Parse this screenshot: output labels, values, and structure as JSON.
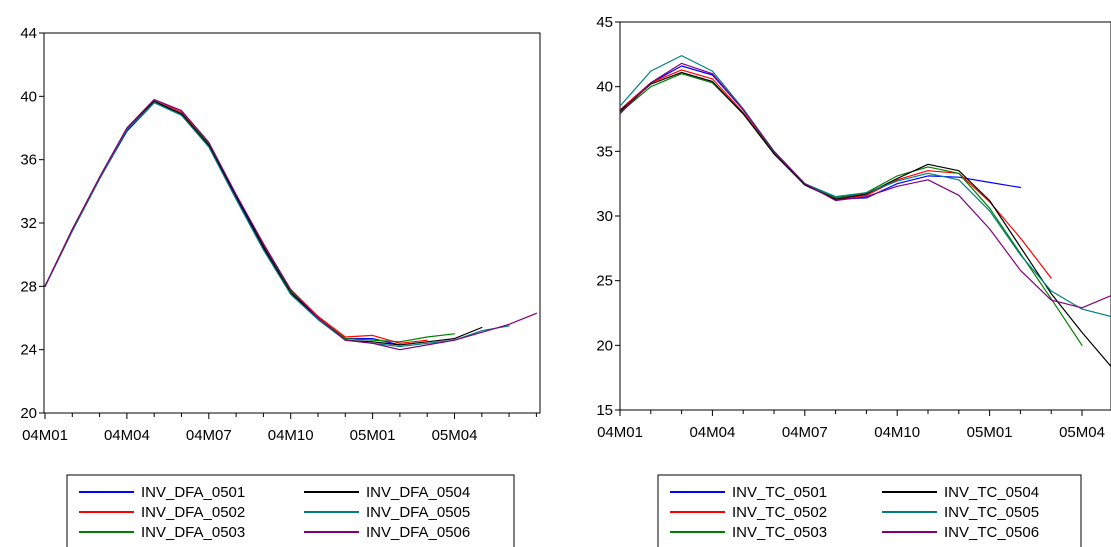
{
  "chart_data": [
    {
      "type": "line",
      "title": "",
      "xlabel": "",
      "ylabel": "",
      "ylim": [
        20,
        44
      ],
      "yticks": [
        20,
        24,
        28,
        32,
        36,
        40,
        44
      ],
      "x_period_labels": [
        "04M01",
        "04M02",
        "04M03",
        "04M04",
        "04M05",
        "04M06",
        "04M07",
        "04M08",
        "04M09",
        "04M10",
        "04M11",
        "04M12",
        "05M01",
        "05M02",
        "05M03",
        "05M04",
        "05M05",
        "05M06",
        "05M07"
      ],
      "xtick_labels": [
        "04M01",
        "04M04",
        "04M07",
        "04M10",
        "05M01",
        "05M04"
      ],
      "grid": false,
      "legend_position": "bottom",
      "series": [
        {
          "name": "INV_DFA_0501",
          "color": "#0000ff",
          "values": [
            28.0,
            31.5,
            34.8,
            37.8,
            39.6,
            38.9,
            36.9,
            33.6,
            30.4,
            27.6,
            26.0,
            24.7,
            24.7,
            24.3
          ]
        },
        {
          "name": "INV_DFA_0502",
          "color": "#ff0000",
          "values": [
            28.0,
            31.6,
            34.9,
            38.0,
            39.8,
            39.0,
            37.0,
            33.8,
            30.6,
            27.8,
            26.1,
            24.8,
            24.9,
            24.4,
            24.6
          ]
        },
        {
          "name": "INV_DFA_0503",
          "color": "#008000",
          "values": [
            28.0,
            31.5,
            34.8,
            37.9,
            39.7,
            38.9,
            37.0,
            33.7,
            30.5,
            27.7,
            26.0,
            24.7,
            24.6,
            24.5,
            24.8,
            25.0
          ]
        },
        {
          "name": "INV_DFA_0504",
          "color": "#000000",
          "values": [
            28.0,
            31.5,
            34.8,
            37.9,
            39.7,
            38.9,
            36.9,
            33.7,
            30.5,
            27.6,
            26.0,
            24.6,
            24.5,
            24.3,
            24.5,
            24.7,
            25.4
          ]
        },
        {
          "name": "INV_DFA_0505",
          "color": "#008080",
          "values": [
            28.0,
            31.5,
            34.8,
            37.9,
            39.6,
            38.8,
            36.8,
            33.5,
            30.3,
            27.5,
            25.9,
            24.6,
            24.4,
            24.2,
            24.4,
            24.6,
            25.2,
            25.5
          ]
        },
        {
          "name": "INV_DFA_0506",
          "color": "#800080",
          "values": [
            28.0,
            31.6,
            34.9,
            38.0,
            39.8,
            39.1,
            37.1,
            33.8,
            30.7,
            27.8,
            26.0,
            24.6,
            24.4,
            24.0,
            24.3,
            24.6,
            25.1,
            25.6,
            26.3
          ]
        }
      ]
    },
    {
      "type": "line",
      "title": "",
      "xlabel": "",
      "ylabel": "",
      "ylim": [
        15,
        45
      ],
      "yticks": [
        15,
        20,
        25,
        30,
        35,
        40,
        45
      ],
      "x_period_labels": [
        "04M01",
        "04M02",
        "04M03",
        "04M04",
        "04M05",
        "04M06",
        "04M07",
        "04M08",
        "04M09",
        "04M10",
        "04M11",
        "04M12",
        "05M01",
        "05M02",
        "05M03",
        "05M04",
        "05M05",
        "05M06",
        "05M07"
      ],
      "xtick_labels": [
        "04M01",
        "04M04",
        "04M07",
        "04M10",
        "05M01",
        "05M04"
      ],
      "grid": false,
      "legend_position": "bottom",
      "series": [
        {
          "name": "INV_TC_0501",
          "color": "#0000ff",
          "values": [
            38.2,
            40.3,
            41.6,
            40.9,
            38.2,
            35.0,
            32.4,
            31.3,
            31.4,
            32.5,
            33.1,
            33.0,
            32.6,
            32.2
          ]
        },
        {
          "name": "INV_TC_0502",
          "color": "#ff0000",
          "values": [
            38.2,
            40.3,
            41.3,
            40.6,
            38.0,
            34.9,
            32.4,
            31.3,
            31.6,
            32.8,
            33.5,
            33.3,
            31.1,
            28.3,
            25.2
          ]
        },
        {
          "name": "INV_TC_0503",
          "color": "#008000",
          "values": [
            38.0,
            40.0,
            41.0,
            40.3,
            37.9,
            34.9,
            32.5,
            31.4,
            31.8,
            33.1,
            33.8,
            33.3,
            30.6,
            27.1,
            23.6,
            20.0
          ]
        },
        {
          "name": "INV_TC_0504",
          "color": "#000000",
          "values": [
            38.1,
            40.2,
            41.1,
            40.4,
            37.9,
            34.8,
            32.4,
            31.3,
            31.7,
            32.9,
            34.0,
            33.5,
            31.2,
            27.6,
            24.0,
            21.0,
            18.2
          ]
        },
        {
          "name": "INV_TC_0505",
          "color": "#008080",
          "values": [
            38.5,
            41.2,
            42.4,
            41.2,
            38.3,
            35.0,
            32.5,
            31.5,
            31.8,
            32.7,
            33.3,
            32.8,
            30.4,
            27.0,
            24.2,
            22.8,
            22.2,
            22.0
          ]
        },
        {
          "name": "INV_TC_0506",
          "color": "#800080",
          "values": [
            37.9,
            40.3,
            41.8,
            41.0,
            38.2,
            35.0,
            32.5,
            31.2,
            31.5,
            32.3,
            32.8,
            31.6,
            29.0,
            25.8,
            23.5,
            22.9,
            23.9,
            25.2,
            26.6
          ]
        }
      ]
    }
  ]
}
